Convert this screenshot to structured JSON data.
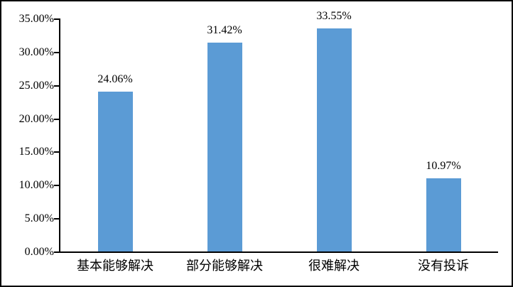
{
  "chart_data": {
    "type": "bar",
    "categories": [
      "基本能够解决",
      "部分能够解决",
      "很难解决",
      "没有投诉"
    ],
    "values": [
      24.06,
      31.42,
      33.55,
      10.97
    ],
    "value_labels": [
      "24.06%",
      "31.42%",
      "33.55%",
      "10.97%"
    ],
    "series_name": "",
    "title": "",
    "xlabel": "",
    "ylabel": "",
    "ylim": [
      0,
      35
    ],
    "ytick_step": 5,
    "ytick_values": [
      0,
      5,
      10,
      15,
      20,
      25,
      30,
      35
    ],
    "ytick_labels": [
      "0.00%",
      "5.00%",
      "10.00%",
      "15.00%",
      "20.00%",
      "25.00%",
      "30.00%",
      "35.00%"
    ],
    "grid": false,
    "legend": false,
    "bar_color": "#5B9BD5",
    "axis_color": "#000000",
    "text_color": "#000000",
    "frame_border_color": "#000000"
  }
}
